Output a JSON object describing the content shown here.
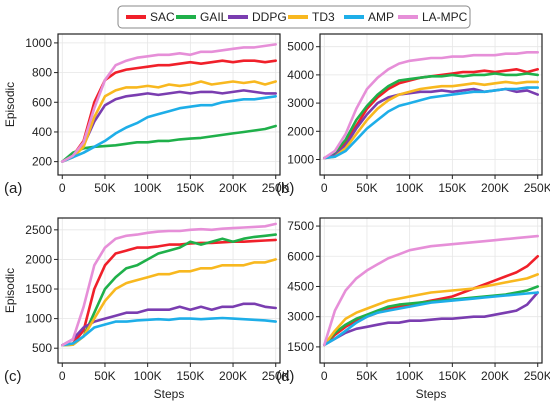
{
  "legend": [
    {
      "name": "SAC",
      "color": "#f0202a"
    },
    {
      "name": "GAIL",
      "color": "#1fb04a"
    },
    {
      "name": "DDPG",
      "color": "#7a3db0"
    },
    {
      "name": "TD3",
      "color": "#f8b81f"
    },
    {
      "name": "AMP",
      "color": "#1eaee8"
    },
    {
      "name": "LA-MPC",
      "color": "#e68fd8"
    }
  ],
  "chart_data": [
    {
      "type": "line",
      "panel_label": "(a)",
      "ylabel": "Episodic",
      "xlabel": "",
      "xlim": [
        -5000,
        255000
      ],
      "ylim": [
        110,
        1060
      ],
      "xticks": [
        0,
        50000,
        100000,
        150000,
        200000,
        250000
      ],
      "xtick_labels": [
        "0",
        "50K",
        "100K",
        "150K",
        "200K",
        "250K"
      ],
      "yticks": [
        200,
        400,
        600,
        800,
        1000
      ],
      "ytick_labels": [
        "200",
        "400",
        "600",
        "800",
        "1000"
      ],
      "x": [
        0,
        12500,
        25000,
        37500,
        50000,
        62500,
        75000,
        87500,
        100000,
        112500,
        125000,
        137500,
        150000,
        162500,
        175000,
        187500,
        200000,
        212500,
        225000,
        237500,
        250000
      ],
      "series": [
        {
          "name": "SAC",
          "values": [
            200,
            240,
            340,
            600,
            750,
            800,
            820,
            830,
            840,
            850,
            850,
            860,
            870,
            860,
            870,
            880,
            870,
            880,
            880,
            870,
            880
          ]
        },
        {
          "name": "GAIL",
          "values": [
            200,
            260,
            290,
            300,
            305,
            310,
            320,
            330,
            330,
            340,
            340,
            350,
            355,
            360,
            370,
            380,
            390,
            400,
            410,
            420,
            440
          ]
        },
        {
          "name": "DDPG",
          "values": [
            200,
            230,
            310,
            470,
            580,
            620,
            640,
            650,
            660,
            650,
            660,
            670,
            660,
            670,
            670,
            660,
            670,
            680,
            670,
            660,
            660
          ]
        },
        {
          "name": "TD3",
          "values": [
            200,
            230,
            300,
            500,
            640,
            680,
            700,
            700,
            710,
            700,
            720,
            710,
            720,
            740,
            720,
            730,
            740,
            730,
            740,
            720,
            740
          ]
        },
        {
          "name": "AMP",
          "values": [
            200,
            230,
            260,
            300,
            340,
            390,
            430,
            460,
            500,
            520,
            540,
            560,
            570,
            580,
            580,
            600,
            610,
            620,
            620,
            630,
            640
          ]
        },
        {
          "name": "LA-MPC",
          "values": [
            200,
            240,
            330,
            560,
            750,
            850,
            880,
            900,
            910,
            920,
            920,
            930,
            920,
            940,
            940,
            950,
            960,
            970,
            970,
            980,
            990
          ]
        }
      ]
    },
    {
      "type": "line",
      "panel_label": "(b)",
      "ylabel": "",
      "xlabel": "",
      "xlim": [
        -5000,
        255000
      ],
      "ylim": [
        450,
        5450
      ],
      "xticks": [
        0,
        50000,
        100000,
        150000,
        200000,
        250000
      ],
      "xtick_labels": [
        "0",
        "50K",
        "100K",
        "150K",
        "200K",
        "250K"
      ],
      "yticks": [
        1000,
        2000,
        3000,
        4000,
        5000
      ],
      "ytick_labels": [
        "1000",
        "2000",
        "3000",
        "4000",
        "5000"
      ],
      "x": [
        0,
        12500,
        25000,
        37500,
        50000,
        62500,
        75000,
        87500,
        100000,
        112500,
        125000,
        137500,
        150000,
        162500,
        175000,
        187500,
        200000,
        212500,
        225000,
        237500,
        250000
      ],
      "series": [
        {
          "name": "SAC",
          "values": [
            1050,
            1200,
            1600,
            2200,
            2800,
            3200,
            3500,
            3700,
            3800,
            3900,
            3950,
            4000,
            4050,
            4100,
            4100,
            4150,
            4100,
            4150,
            4200,
            4100,
            4200
          ]
        },
        {
          "name": "GAIL",
          "values": [
            1050,
            1250,
            1700,
            2400,
            2900,
            3300,
            3600,
            3800,
            3850,
            3900,
            3950,
            3950,
            4000,
            3950,
            4000,
            4000,
            4050,
            4000,
            4000,
            4050,
            4000
          ]
        },
        {
          "name": "DDPG",
          "values": [
            1050,
            1150,
            1500,
            2100,
            2600,
            3000,
            3200,
            3300,
            3350,
            3400,
            3400,
            3450,
            3400,
            3450,
            3500,
            3400,
            3450,
            3500,
            3400,
            3450,
            3300
          ]
        },
        {
          "name": "TD3",
          "values": [
            1050,
            1100,
            1400,
            1900,
            2400,
            2800,
            3100,
            3300,
            3400,
            3500,
            3550,
            3600,
            3600,
            3650,
            3700,
            3650,
            3700,
            3750,
            3700,
            3750,
            3750
          ]
        },
        {
          "name": "AMP",
          "values": [
            1050,
            1100,
            1300,
            1700,
            2100,
            2400,
            2700,
            2900,
            3000,
            3100,
            3200,
            3250,
            3300,
            3350,
            3400,
            3400,
            3450,
            3500,
            3500,
            3550,
            3550
          ]
        },
        {
          "name": "LA-MPC",
          "values": [
            1050,
            1300,
            1900,
            2800,
            3500,
            3900,
            4200,
            4400,
            4500,
            4550,
            4600,
            4600,
            4650,
            4650,
            4700,
            4700,
            4700,
            4750,
            4750,
            4800,
            4800
          ]
        }
      ]
    },
    {
      "type": "line",
      "panel_label": "(c)",
      "ylabel": "Episodic",
      "xlabel": "Steps",
      "xlim": [
        -5000,
        255000
      ],
      "ylim": [
        250,
        2700
      ],
      "xticks": [
        0,
        50000,
        100000,
        150000,
        200000,
        250000
      ],
      "xtick_labels": [
        "0",
        "50K",
        "100K",
        "150K",
        "200K",
        "250K"
      ],
      "yticks": [
        500,
        1000,
        1500,
        2000,
        2500
      ],
      "ytick_labels": [
        "500",
        "1000",
        "1500",
        "2000",
        "2500"
      ],
      "x": [
        0,
        12500,
        25000,
        37500,
        50000,
        62500,
        75000,
        87500,
        100000,
        112500,
        125000,
        137500,
        150000,
        162500,
        175000,
        187500,
        200000,
        212500,
        225000,
        237500,
        250000
      ],
      "series": [
        {
          "name": "SAC",
          "values": [
            550,
            580,
            800,
            1500,
            1900,
            2100,
            2150,
            2200,
            2200,
            2220,
            2250,
            2250,
            2270,
            2280,
            2280,
            2290,
            2300,
            2300,
            2310,
            2320,
            2330
          ]
        },
        {
          "name": "GAIL",
          "values": [
            550,
            560,
            700,
            1100,
            1500,
            1700,
            1850,
            1900,
            2000,
            2100,
            2150,
            2200,
            2300,
            2250,
            2300,
            2350,
            2300,
            2350,
            2380,
            2400,
            2420
          ]
        },
        {
          "name": "DDPG",
          "values": [
            550,
            650,
            850,
            950,
            1000,
            1050,
            1100,
            1100,
            1150,
            1150,
            1150,
            1200,
            1150,
            1200,
            1150,
            1200,
            1200,
            1250,
            1250,
            1200,
            1180
          ]
        },
        {
          "name": "TD3",
          "values": [
            550,
            560,
            700,
            1000,
            1300,
            1500,
            1600,
            1650,
            1700,
            1750,
            1750,
            1800,
            1800,
            1850,
            1850,
            1900,
            1900,
            1900,
            1950,
            1950,
            2000
          ]
        },
        {
          "name": "AMP",
          "values": [
            550,
            580,
            700,
            850,
            900,
            950,
            950,
            970,
            980,
            990,
            980,
            1000,
            1000,
            990,
            1000,
            1010,
            1000,
            990,
            980,
            970,
            950
          ]
        },
        {
          "name": "LA-MPC",
          "values": [
            550,
            650,
            1200,
            1900,
            2200,
            2350,
            2400,
            2420,
            2450,
            2470,
            2480,
            2480,
            2500,
            2510,
            2500,
            2520,
            2530,
            2540,
            2550,
            2560,
            2600
          ]
        }
      ]
    },
    {
      "type": "line",
      "panel_label": "(d)",
      "ylabel": "",
      "xlabel": "Steps",
      "xlim": [
        -5000,
        255000
      ],
      "ylim": [
        700,
        7900
      ],
      "xticks": [
        0,
        50000,
        100000,
        150000,
        200000,
        250000
      ],
      "xtick_labels": [
        "0",
        "50K",
        "100K",
        "150K",
        "200K",
        "250K"
      ],
      "yticks": [
        1500,
        3000,
        4500,
        6000,
        7500
      ],
      "ytick_labels": [
        "1500",
        "3000",
        "4500",
        "6000",
        "7500"
      ],
      "x": [
        0,
        12500,
        25000,
        37500,
        50000,
        62500,
        75000,
        87500,
        100000,
        112500,
        125000,
        137500,
        150000,
        162500,
        175000,
        187500,
        200000,
        212500,
        225000,
        237500,
        250000
      ],
      "series": [
        {
          "name": "SAC",
          "values": [
            1600,
            2100,
            2500,
            2800,
            3000,
            3200,
            3400,
            3500,
            3600,
            3700,
            3800,
            3900,
            4000,
            4200,
            4400,
            4600,
            4800,
            5000,
            5200,
            5500,
            6000
          ]
        },
        {
          "name": "GAIL",
          "values": [
            1600,
            2200,
            2600,
            2900,
            3100,
            3300,
            3500,
            3600,
            3650,
            3700,
            3750,
            3800,
            3850,
            3900,
            3950,
            4000,
            4050,
            4100,
            4200,
            4300,
            4500
          ]
        },
        {
          "name": "DDPG",
          "values": [
            1600,
            1900,
            2200,
            2400,
            2500,
            2600,
            2700,
            2700,
            2800,
            2800,
            2850,
            2900,
            2900,
            2950,
            3000,
            3000,
            3100,
            3200,
            3300,
            3600,
            4200
          ]
        },
        {
          "name": "TD3",
          "values": [
            1600,
            2300,
            2900,
            3200,
            3400,
            3600,
            3800,
            3900,
            4000,
            4100,
            4200,
            4250,
            4300,
            4350,
            4400,
            4500,
            4600,
            4700,
            4800,
            4900,
            5100
          ]
        },
        {
          "name": "AMP",
          "values": [
            1600,
            1900,
            2300,
            2700,
            3000,
            3200,
            3300,
            3400,
            3500,
            3600,
            3700,
            3750,
            3800,
            3850,
            3900,
            3950,
            4000,
            4050,
            4100,
            4150,
            4200
          ]
        },
        {
          "name": "LA-MPC",
          "values": [
            1600,
            3300,
            4300,
            4900,
            5300,
            5600,
            5900,
            6100,
            6300,
            6400,
            6500,
            6550,
            6600,
            6650,
            6700,
            6750,
            6800,
            6850,
            6900,
            6950,
            7000
          ]
        }
      ]
    }
  ]
}
